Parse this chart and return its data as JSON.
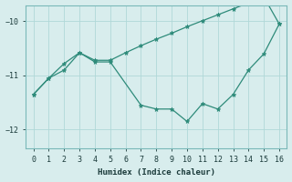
{
  "line1_x": [
    0,
    1,
    2,
    3,
    4,
    5,
    6,
    7,
    8,
    9,
    10,
    11,
    12,
    13,
    14,
    15,
    16
  ],
  "line1_y": [
    -11.35,
    -11.05,
    -10.78,
    -10.58,
    -10.72,
    -10.72,
    -10.58,
    -10.45,
    -10.33,
    -10.22,
    -10.1,
    -9.99,
    -9.88,
    -9.77,
    -9.66,
    -9.55,
    -10.05
  ],
  "line2_x": [
    0,
    1,
    2,
    3,
    4,
    5,
    7,
    8,
    9,
    10,
    11,
    12,
    13,
    14,
    15,
    16
  ],
  "line2_y": [
    -11.35,
    -11.05,
    -10.9,
    -10.58,
    -10.75,
    -10.75,
    -11.55,
    -11.62,
    -11.62,
    -11.85,
    -11.52,
    -11.62,
    -11.35,
    -10.9,
    -10.6,
    -10.05
  ],
  "line_color": "#2e8b7a",
  "background_color": "#d8eded",
  "grid_color": "#b0d8d8",
  "xlabel": "Humidex (Indice chaleur)",
  "xlim": [
    -0.5,
    16.5
  ],
  "ylim": [
    -12.35,
    -9.7
  ],
  "yticks": [
    -12,
    -11,
    -10
  ],
  "xticks": [
    0,
    1,
    2,
    3,
    4,
    5,
    6,
    7,
    8,
    9,
    10,
    11,
    12,
    13,
    14,
    15,
    16
  ]
}
